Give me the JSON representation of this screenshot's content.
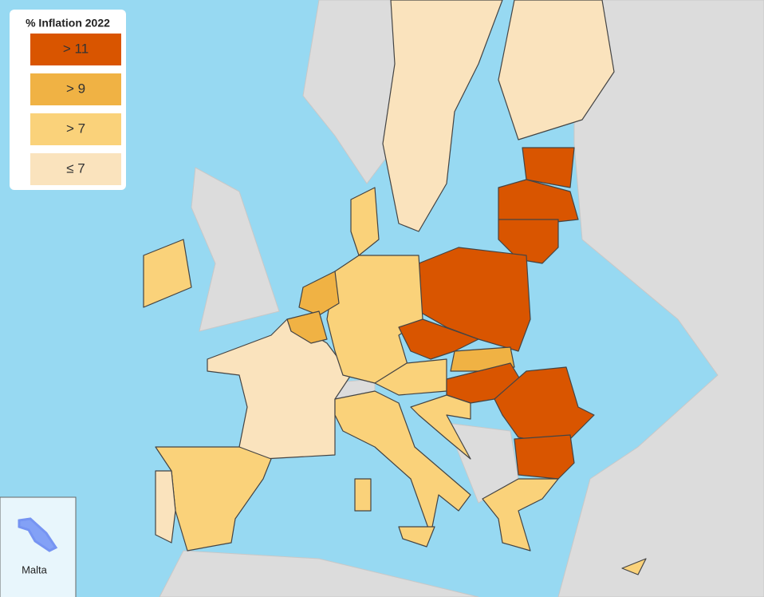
{
  "legend": {
    "title": "% Inflation 2022",
    "items": [
      {
        "label": "> 11",
        "color": "#d95500"
      },
      {
        "label": "> 9",
        "color": "#f0b244"
      },
      {
        "label": "> 7",
        "color": "#fad27a"
      },
      {
        "label": "≤ 7",
        "color": "#fae3bd"
      }
    ]
  },
  "inset": {
    "label": "Malta"
  }
}
